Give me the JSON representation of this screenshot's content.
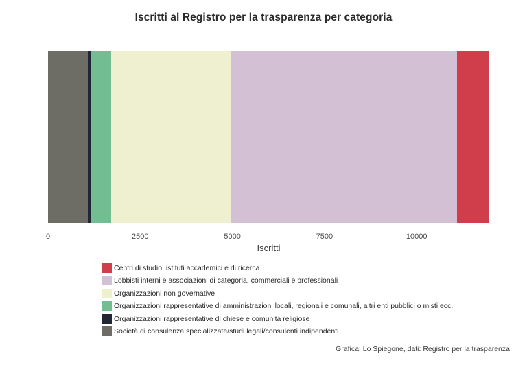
{
  "chart_data": {
    "type": "bar",
    "orientation": "horizontal",
    "stacked": true,
    "title": "Iscritti al Registro per la trasparenza per categoria",
    "xlabel": "Iscritti",
    "xticks": [
      0,
      2500,
      5000,
      7500,
      10000
    ],
    "xlim": [
      0,
      11970
    ],
    "grid": false,
    "legend_position": "bottom-left",
    "stack_order": "reverse of legend order (last legend entry is leftmost segment)",
    "series": [
      {
        "name": "Centri di studio, istituti accademici e di ricerca",
        "value": 870,
        "color": "#d03d4b"
      },
      {
        "name": "Lobbisti interni e associazioni di categoria, commerciali e professionali",
        "value": 6140,
        "color": "#d4c0d4"
      },
      {
        "name": "Organizzazioni non governative",
        "value": 3240,
        "color": "#eef0d0"
      },
      {
        "name": "Organizzazioni rappresentative di amministrazioni locali, regionali e comunali, altri enti pubblici o misti ecc.",
        "value": 560,
        "color": "#73bd93"
      },
      {
        "name": "Organizzazioni rappresentative di chiese e comunità religiose",
        "value": 80,
        "color": "#222634"
      },
      {
        "name": "Società di consulenza specializzate/studi legali/consulenti indipendenti",
        "value": 1080,
        "color": "#6d6d66"
      }
    ]
  },
  "footer": {
    "credit": "Grafica: Lo Spiegone, dati: Registro per la trasparenza"
  },
  "colors": {
    "background": "#ffffff",
    "title_text": "#2a2a2a",
    "tick_text": "#4b4b4b",
    "footer_text": "#3c3c3c"
  }
}
